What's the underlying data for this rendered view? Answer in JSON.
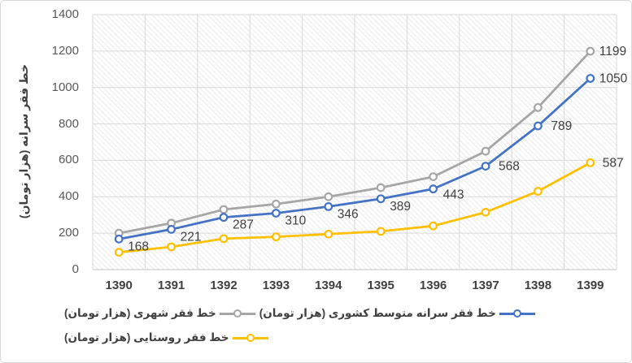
{
  "chart_data": {
    "type": "line",
    "categories": [
      "1390",
      "1391",
      "1392",
      "1393",
      "1394",
      "1395",
      "1396",
      "1397",
      "1398",
      "1399"
    ],
    "series": [
      {
        "name": "خط فقر سرانه متوسط کشوری (هزار تومان)",
        "color": "#4472C4",
        "values": [
          168,
          221,
          287,
          310,
          346,
          389,
          443,
          568,
          789,
          1050
        ],
        "labeled_points": "all"
      },
      {
        "name": "خط فقر شهری (هزار تومان)",
        "color": "#A6A6A6",
        "values": [
          200,
          255,
          330,
          360,
          400,
          450,
          510,
          650,
          890,
          1199
        ],
        "labeled_points": "last"
      },
      {
        "name": "خط فقر روستایی (هزار تومان)",
        "color": "#FFC000",
        "values": [
          95,
          125,
          170,
          180,
          195,
          210,
          240,
          315,
          430,
          587
        ],
        "labeled_points": "last"
      }
    ],
    "ylabel": "خط فقر سرانه (هزار تومان)",
    "xlabel": "",
    "title": "",
    "ylim": [
      0,
      1400
    ],
    "ytick_step": 200,
    "yticks": [
      "0",
      "200",
      "400",
      "600",
      "800",
      "1000",
      "1200",
      "1400"
    ],
    "grid": true,
    "plot_background": "light-diagonal-hatch",
    "legend_position": "bottom-left",
    "marker_style": "open-circle"
  },
  "colors": {
    "gridline": "#d9d9d9",
    "axis_line": "#c6c6c6",
    "axis_text": "#595959",
    "category_text": "#404040",
    "data_label_text": "#404040"
  }
}
